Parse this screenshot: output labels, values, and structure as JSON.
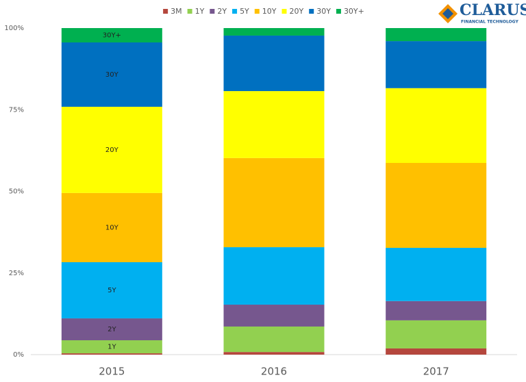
{
  "chart_data": {
    "type": "stacked_bar",
    "categories": [
      "2015",
      "2016",
      "2017"
    ],
    "series": [
      {
        "name": "3M",
        "color": "#b5473d",
        "values": [
          0.4,
          0.8,
          1.9
        ]
      },
      {
        "name": "1Y",
        "color": "#92d050",
        "values": [
          4.0,
          7.8,
          8.6
        ]
      },
      {
        "name": "2Y",
        "color": "#76578e",
        "values": [
          6.7,
          6.7,
          5.9
        ]
      },
      {
        "name": "5Y",
        "color": "#00b0f0",
        "values": [
          17.2,
          17.6,
          16.3
        ]
      },
      {
        "name": "10Y",
        "color": "#ffc000",
        "values": [
          21.2,
          27.3,
          26.0
        ]
      },
      {
        "name": "20Y",
        "color": "#ffff00",
        "values": [
          26.4,
          20.5,
          22.9
        ]
      },
      {
        "name": "30Y",
        "color": "#0070c0",
        "values": [
          19.7,
          17.0,
          14.4
        ]
      },
      {
        "name": "30Y+",
        "color": "#00b050",
        "values": [
          4.4,
          2.3,
          4.0
        ]
      }
    ],
    "ylim": [
      0,
      100
    ],
    "yticks": [
      {
        "value": 0,
        "label": "0%"
      },
      {
        "value": 25,
        "label": "25%"
      },
      {
        "value": 50,
        "label": "50%"
      },
      {
        "value": 75,
        "label": "75%"
      },
      {
        "value": 100,
        "label": "100%"
      }
    ],
    "legend": "top",
    "grid": false
  },
  "logo": {
    "name": "CLARUS",
    "tagline": "FINANCIAL TECHNOLOGY"
  }
}
